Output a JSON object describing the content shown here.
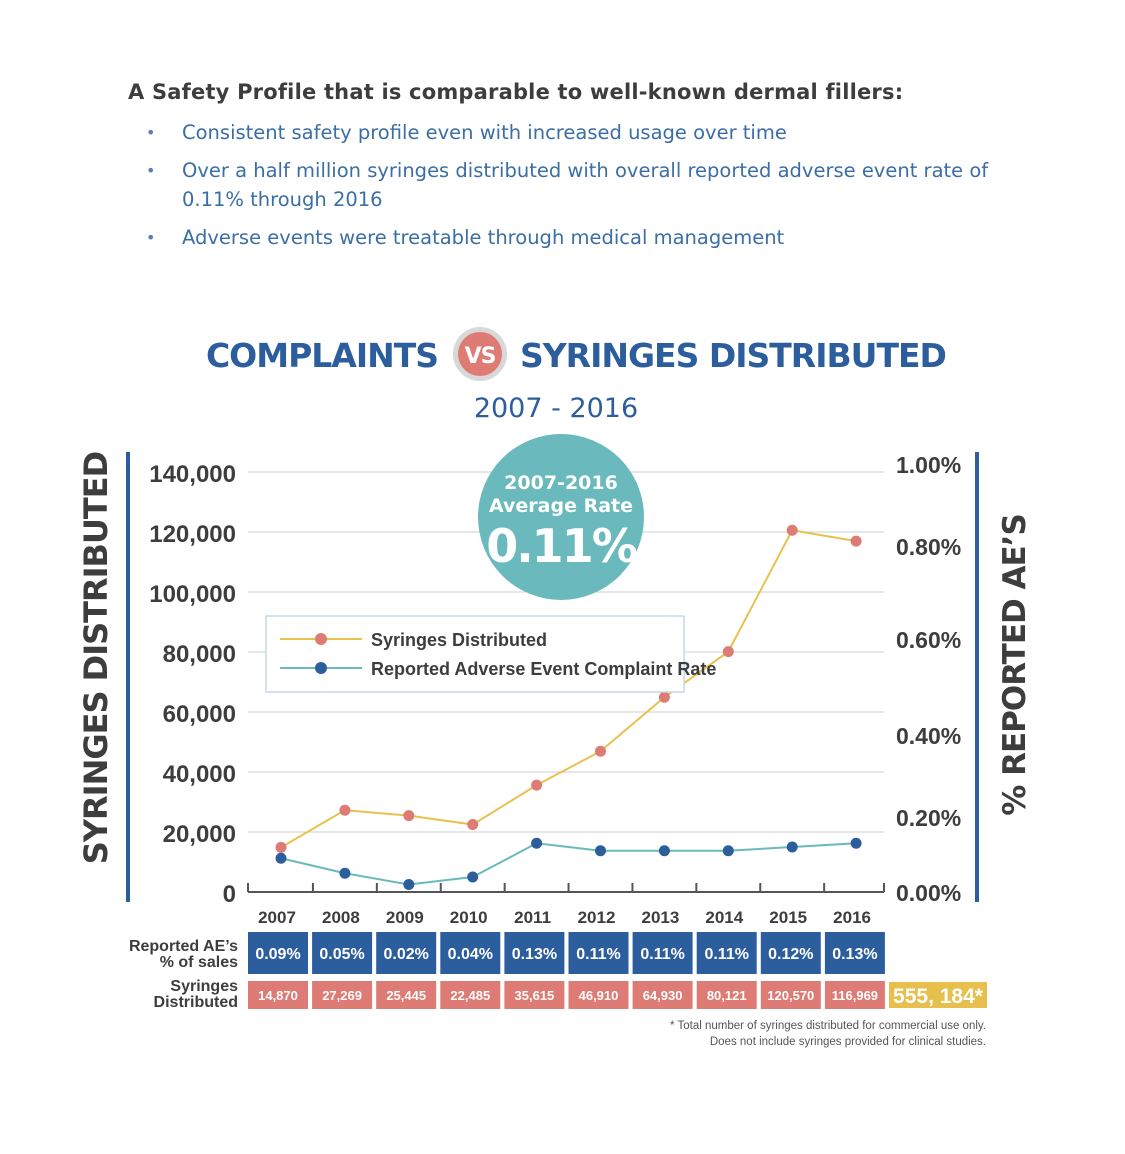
{
  "intro": {
    "heading": "A Safety Profile that is comparable to well-known dermal fillers:",
    "bullets": [
      "Consistent safety profile even with increased usage over time",
      "Over a half million syringes distributed with overall reported adverse event rate of 0.11% through 2016",
      "Adverse events were treatable through medical management"
    ]
  },
  "chart_data": {
    "type": "line",
    "title_left": "COMPLAINTS",
    "title_vs": "VS",
    "title_right": "SYRINGES DISTRIBUTED",
    "subtitle": "2007 - 2016",
    "ylabel_left": "SYRINGES DISTRIBUTED",
    "ylabel_right": "% REPORTED AE’S",
    "x": [
      "2007",
      "2008",
      "2009",
      "2010",
      "2011",
      "2012",
      "2013",
      "2014",
      "2015",
      "2016"
    ],
    "y_left_ticks": [
      "0",
      "20,000",
      "40,000",
      "60,000",
      "80,000",
      "100,000",
      "120,000",
      "140,000"
    ],
    "y_left_range": [
      0,
      140000
    ],
    "y_right_ticks": [
      "0.00%",
      "0.20%",
      "0.40%",
      "0.60%",
      "0.80%",
      "1.00%"
    ],
    "y_right_tick_values": [
      0.0,
      0.2,
      0.4,
      0.6,
      0.8,
      1.0
    ],
    "y_right_range": [
      0,
      1.0
    ],
    "series": [
      {
        "name": "Syringes Distributed",
        "axis": "left",
        "color": "#e8c24e",
        "marker": "#de7b74",
        "values": [
          14870,
          27269,
          25445,
          22485,
          35615,
          46910,
          64930,
          80121,
          120570,
          116969
        ]
      },
      {
        "name": "Reported Adverse Event Complaint Rate",
        "axis": "right",
        "color": "#6ab9bc",
        "marker": "#2c5d9d",
        "values": [
          0.09,
          0.05,
          0.02,
          0.04,
          0.13,
          0.11,
          0.11,
          0.11,
          0.12,
          0.13
        ]
      }
    ],
    "badge": {
      "line1": "2007-2016",
      "line2": "Average Rate",
      "value": "0.11%"
    },
    "table": {
      "row1_label": [
        "Reported AE’s",
        "% of sales"
      ],
      "row1": [
        "0.09%",
        "0.05%",
        "0.02%",
        "0.04%",
        "0.13%",
        "0.11%",
        "0.11%",
        "0.11%",
        "0.12%",
        "0.13%"
      ],
      "row2_label": [
        "Syringes",
        "Distributed"
      ],
      "row2": [
        "14,870",
        "27,269",
        "25,445",
        "22,485",
        "35,615",
        "46,910",
        "64,930",
        "80,121",
        "120,570",
        "116,969"
      ],
      "total": "555, 184*"
    },
    "footnote": [
      "* Total number of syringes distributed for commercial use only.",
      "Does not include syringes provided for clinical studies."
    ],
    "grid": true,
    "legend_position": "center-left",
    "colors": {
      "blue": "#2c5d9d",
      "teal": "#6ab9bc",
      "red": "#de7b74",
      "gold": "#e6bf4c",
      "gray": "#3d3d3d"
    }
  }
}
